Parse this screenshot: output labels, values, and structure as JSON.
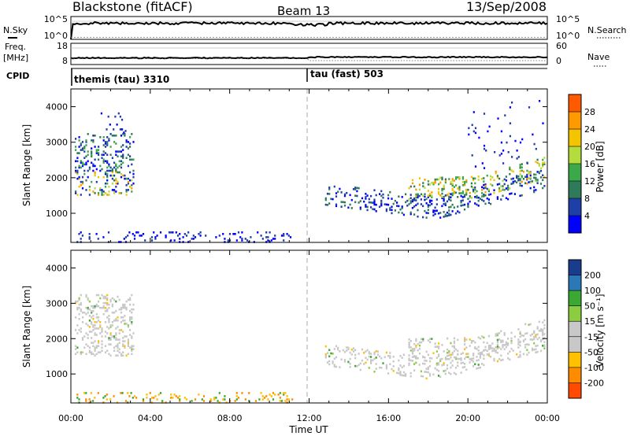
{
  "header": {
    "station": "Blackstone (fitACF)",
    "beam": "Beam 13",
    "date": "13/Sep/2008"
  },
  "nsky_panel": {
    "left_label": "N.Sky",
    "right_label": "N.Search",
    "left_ticks": [
      "10^5",
      "10^0"
    ],
    "right_ticks": [
      "10^5",
      "10^0"
    ]
  },
  "freq_panel": {
    "left_label_line1": "Freq.",
    "left_label_line2": "[MHz]",
    "right_label": "Nave",
    "left_ticks": [
      "18",
      "8"
    ],
    "right_ticks": [
      "60",
      "0"
    ]
  },
  "cpid_panel": {
    "label": "CPID",
    "modes": [
      {
        "name": "themis (tau) 3310",
        "start_hour": 0
      },
      {
        "name": "tau (fast) 503",
        "start_hour": 12
      }
    ]
  },
  "colors": {
    "power_scale": [
      "#0000ff",
      "#1f3fa8",
      "#2e7a5a",
      "#3ba84a",
      "#b4dc3c",
      "#f5c400",
      "#ff9900",
      "#ff5a00",
      "#ff0000"
    ],
    "velocity_scale": [
      "#1a3c8c",
      "#2b78b8",
      "#3aa832",
      "#8ccc40",
      "#c8c8c8",
      "#c8c8c8",
      "#ffc000",
      "#ff8c00",
      "#ff4a00",
      "#ff0000"
    ]
  },
  "chart_data": [
    {
      "type": "heatmap",
      "name_hint": "power",
      "ylabel": "Slant Range [km]",
      "xlabel": "Time UT",
      "ylim": [
        180,
        4500
      ],
      "yticks": [
        1000,
        2000,
        3000,
        4000
      ],
      "xlim": [
        0,
        24
      ],
      "xtick_labels": [
        "00:00",
        "04:00",
        "08:00",
        "12:00",
        "16:00",
        "20:00",
        "00:00"
      ],
      "colorbar": {
        "label": "Power [dB]",
        "tick_labels": [
          "4",
          "8",
          "12",
          "16",
          "20",
          "24",
          "28"
        ],
        "range": [
          0,
          30
        ]
      },
      "features": [
        {
          "kind": "patch",
          "t": [
            0.2,
            3.2
          ],
          "r": [
            1550,
            3300
          ],
          "typ": "mixed"
        },
        {
          "kind": "patch",
          "t": [
            1.5,
            2.8
          ],
          "r": [
            3300,
            3900
          ],
          "typ": "sparse"
        },
        {
          "kind": "band",
          "t": [
            0.2,
            11.2
          ],
          "r": [
            220,
            520
          ],
          "typ": "low"
        },
        {
          "kind": "arc",
          "t": [
            12.8,
            23.9
          ],
          "r_start": 1450,
          "r_mid": 1050,
          "r_end": 1900,
          "typ": "mid"
        },
        {
          "kind": "arc",
          "t": [
            17,
            23.9
          ],
          "r_start": 1600,
          "r_mid": 1650,
          "r_end": 2200,
          "typ": "high"
        },
        {
          "kind": "sparse",
          "t": [
            20,
            24
          ],
          "r": [
            2300,
            4200
          ],
          "typ": "low"
        }
      ]
    },
    {
      "type": "heatmap",
      "name_hint": "velocity",
      "ylabel": "Slant Range [km]",
      "xlabel": "Time UT",
      "ylim": [
        180,
        4500
      ],
      "yticks": [
        1000,
        2000,
        3000,
        4000
      ],
      "xlim": [
        0,
        24
      ],
      "xtick_labels": [
        "00:00",
        "04:00",
        "08:00",
        "12:00",
        "16:00",
        "20:00",
        "00:00"
      ],
      "colorbar": {
        "label": "Velocity [m s⁻¹]",
        "tick_labels": [
          "200",
          "100",
          "50",
          "15",
          "-15",
          "-50",
          "-100",
          "-200"
        ],
        "range": [
          -250,
          250
        ]
      },
      "features": [
        {
          "kind": "patch",
          "t": [
            0.2,
            3.2
          ],
          "r": [
            1550,
            3300
          ],
          "typ": "gray"
        },
        {
          "kind": "band",
          "t": [
            0.2,
            11.2
          ],
          "r": [
            220,
            520
          ],
          "typ": "orange"
        },
        {
          "kind": "arc",
          "t": [
            12.8,
            23.9
          ],
          "r_start": 1450,
          "r_mid": 1050,
          "r_end": 1900,
          "typ": "gray"
        },
        {
          "kind": "arc",
          "t": [
            17,
            23.9
          ],
          "r_start": 1600,
          "r_mid": 1650,
          "r_end": 2200,
          "typ": "gray"
        }
      ]
    }
  ]
}
